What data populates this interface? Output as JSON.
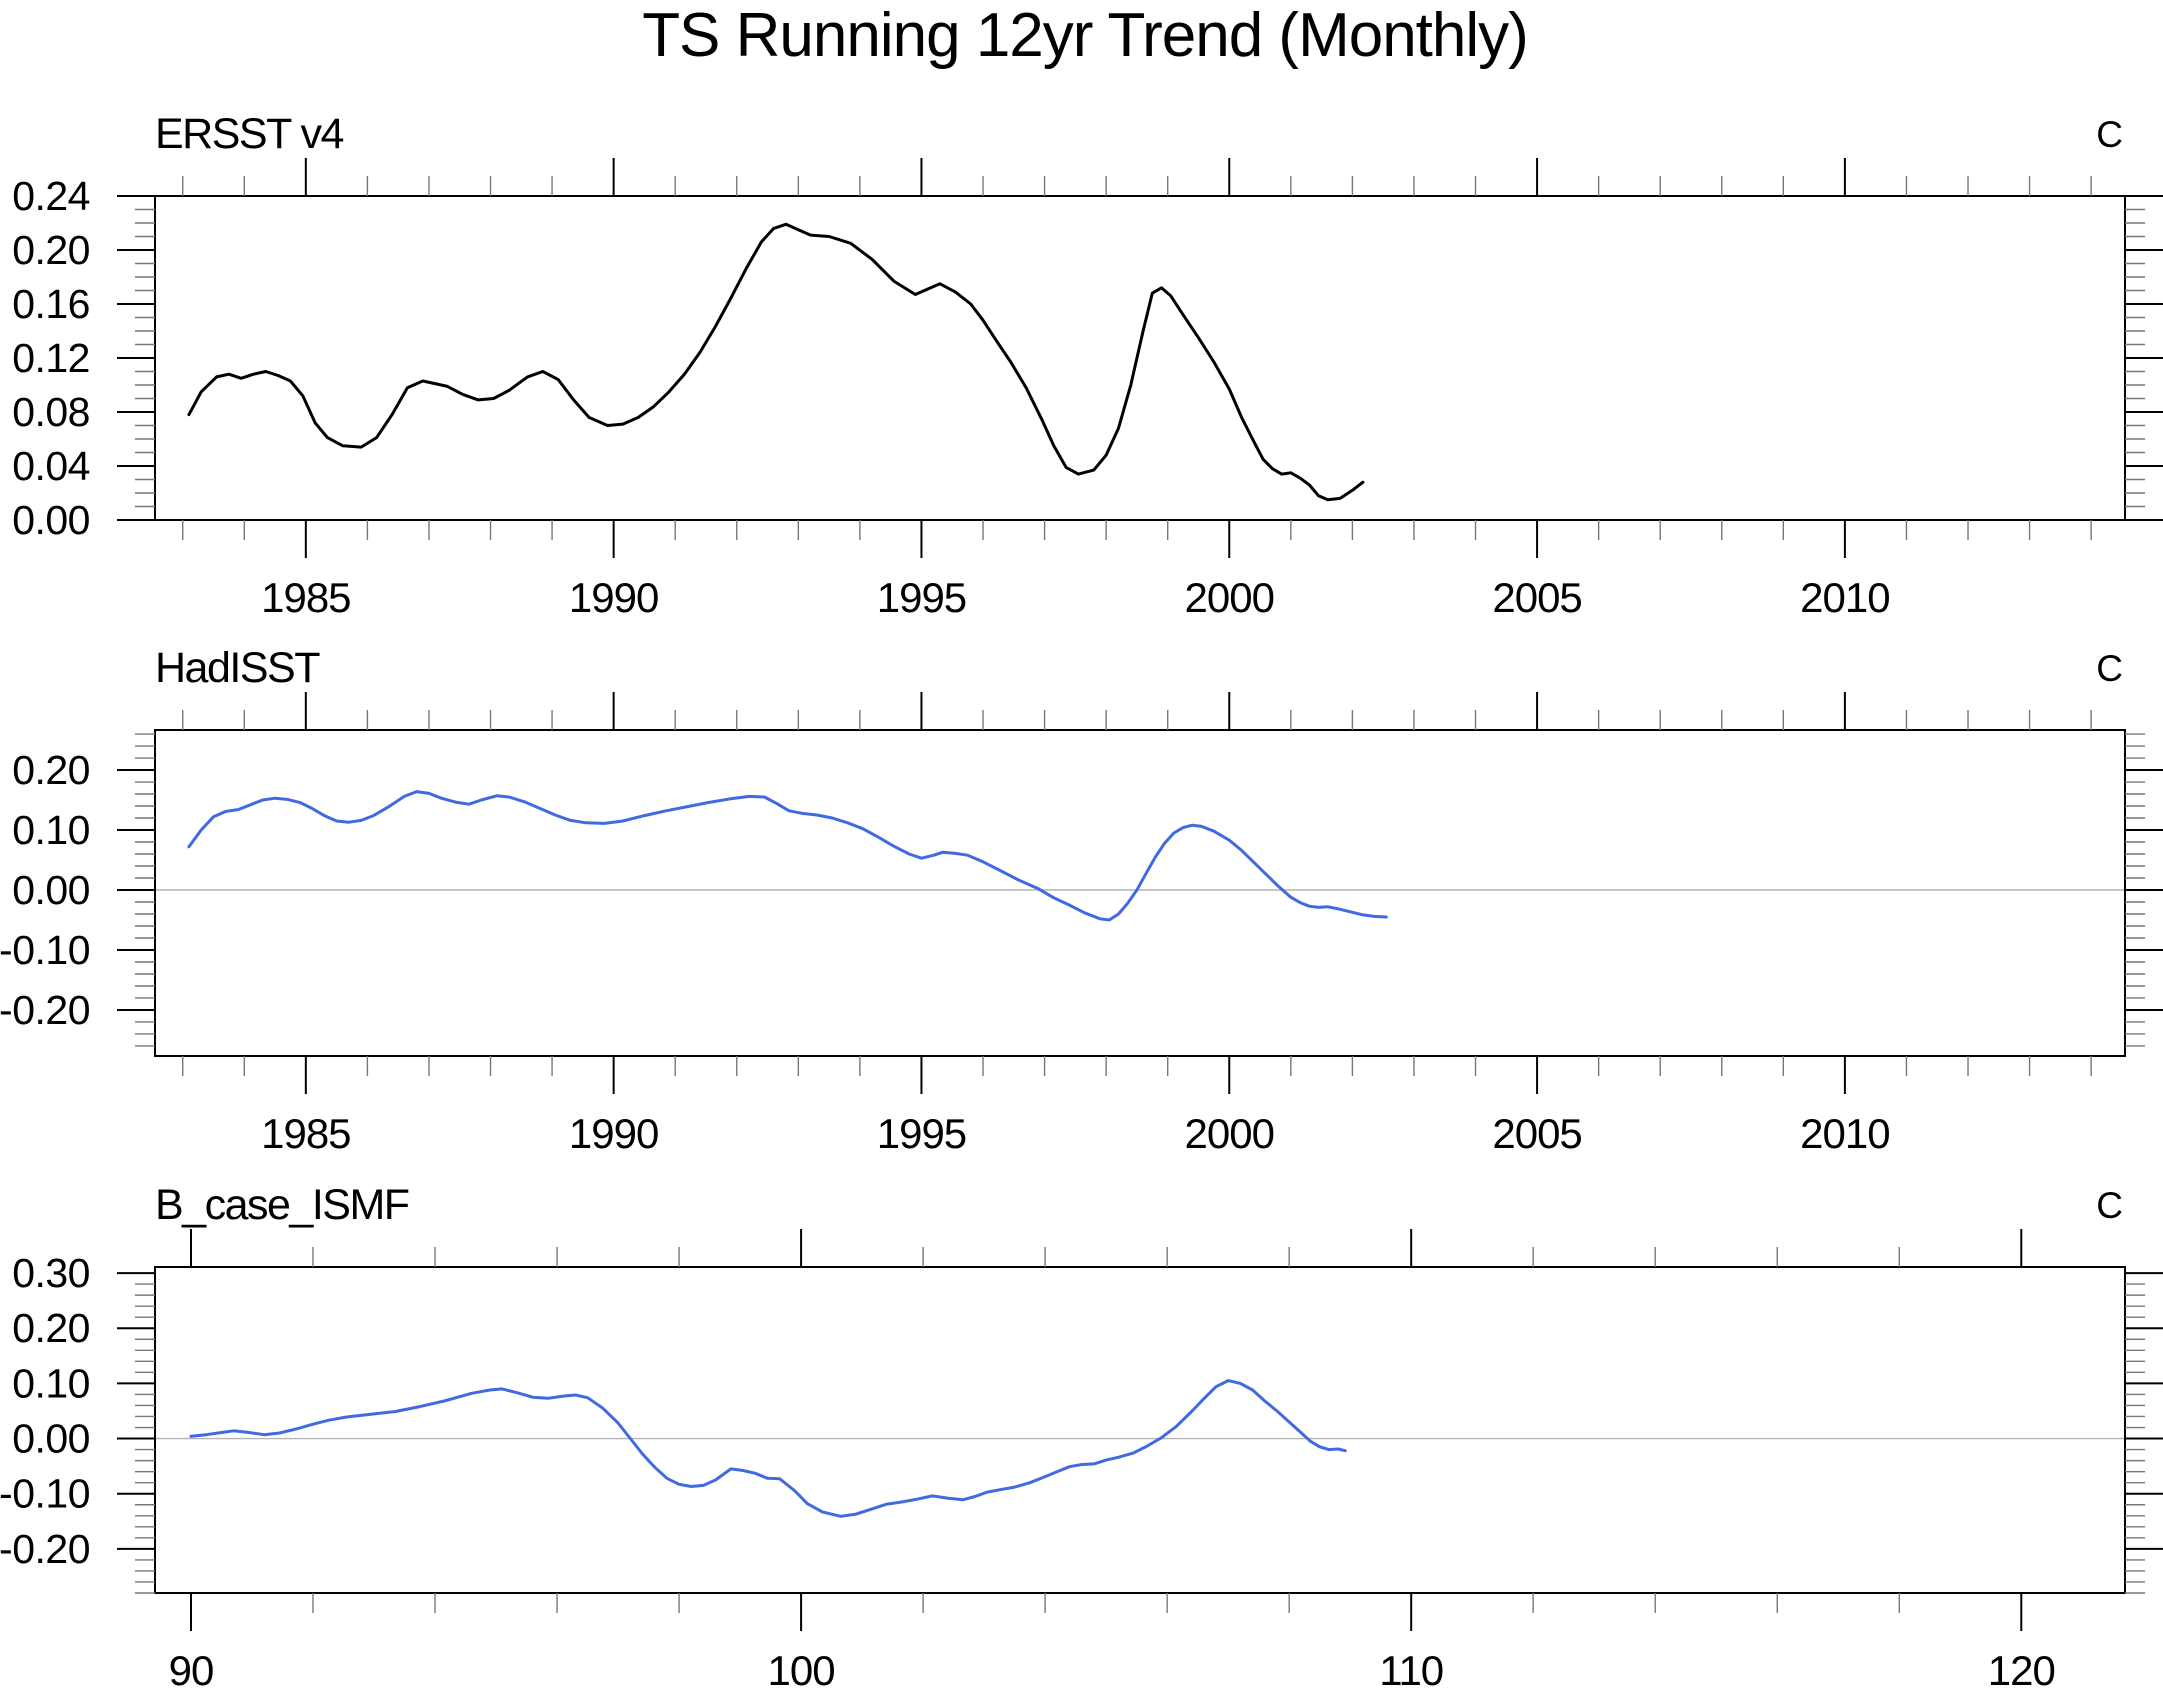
{
  "title": "TS Running 12yr Trend (Monthly)",
  "colors": {
    "background": "#ffffff",
    "axis": "#000000",
    "major_tick": "#000000",
    "minor_tick": "#777777",
    "zero_line": "#b3b3b3",
    "black_series": "#000000",
    "blue_series": "#4169e1"
  },
  "chart_data": [
    {
      "type": "line",
      "title": "ERSST v4",
      "unit_label": "C",
      "line_color": "#000000",
      "grid": false,
      "zero_line": false,
      "xlim": [
        1982.55,
        2014.55
      ],
      "ylim": [
        0.0,
        0.24
      ],
      "x_major_ticks": [
        1985,
        1990,
        1995,
        2000,
        2005,
        2010
      ],
      "x_tick_labels": [
        "1985",
        "1990",
        "1995",
        "2000",
        "2005",
        "2010"
      ],
      "x_minor_step": 1,
      "y_major_ticks": [
        0.0,
        0.04,
        0.08,
        0.12,
        0.16,
        0.2,
        0.24
      ],
      "y_tick_labels": [
        "0.00",
        "0.04",
        "0.08",
        "0.12",
        "0.16",
        "0.20",
        "0.24"
      ],
      "y_minor_step": 0.01,
      "x": [
        1983.1,
        1983.3,
        1983.55,
        1983.75,
        1983.95,
        1984.15,
        1984.35,
        1984.55,
        1984.75,
        1984.95,
        1985.15,
        1985.35,
        1985.6,
        1985.9,
        1986.15,
        1986.4,
        1986.65,
        1986.9,
        1987.1,
        1987.3,
        1987.55,
        1987.8,
        1988.05,
        1988.3,
        1988.6,
        1988.85,
        1989.1,
        1989.35,
        1989.6,
        1989.9,
        1990.15,
        1990.4,
        1990.65,
        1990.9,
        1991.15,
        1991.4,
        1991.65,
        1991.9,
        1992.15,
        1992.4,
        1992.6,
        1992.8,
        1993.0,
        1993.2,
        1993.5,
        1993.85,
        1994.2,
        1994.55,
        1994.9,
        1995.1,
        1995.3,
        1995.55,
        1995.8,
        1996.0,
        1996.2,
        1996.45,
        1996.7,
        1996.95,
        1997.15,
        1997.35,
        1997.55,
        1997.8,
        1998.0,
        1998.2,
        1998.4,
        1998.6,
        1998.75,
        1998.9,
        1999.05,
        1999.25,
        1999.5,
        1999.75,
        2000.0,
        2000.2,
        2000.4,
        2000.55,
        2000.7,
        2000.85,
        2001.0,
        2001.15,
        2001.3,
        2001.45,
        2001.6,
        2001.8,
        2002.0,
        2002.17
      ],
      "y": [
        0.078,
        0.095,
        0.106,
        0.108,
        0.105,
        0.108,
        0.11,
        0.107,
        0.103,
        0.092,
        0.072,
        0.061,
        0.055,
        0.054,
        0.061,
        0.078,
        0.098,
        0.103,
        0.101,
        0.099,
        0.093,
        0.089,
        0.09,
        0.096,
        0.106,
        0.11,
        0.104,
        0.089,
        0.076,
        0.07,
        0.071,
        0.076,
        0.084,
        0.095,
        0.108,
        0.124,
        0.143,
        0.164,
        0.186,
        0.206,
        0.216,
        0.219,
        0.215,
        0.211,
        0.21,
        0.205,
        0.193,
        0.177,
        0.167,
        0.171,
        0.175,
        0.169,
        0.16,
        0.148,
        0.134,
        0.117,
        0.098,
        0.075,
        0.055,
        0.039,
        0.034,
        0.037,
        0.048,
        0.068,
        0.1,
        0.14,
        0.168,
        0.172,
        0.166,
        0.152,
        0.135,
        0.117,
        0.097,
        0.076,
        0.058,
        0.045,
        0.038,
        0.034,
        0.035,
        0.031,
        0.026,
        0.018,
        0.015,
        0.016,
        0.022,
        0.028
      ]
    },
    {
      "type": "line",
      "title": "HadISST",
      "unit_label": "C",
      "line_color": "#4169e1",
      "grid": false,
      "zero_line": true,
      "xlim": [
        1982.55,
        2014.55
      ],
      "ylim": [
        -0.2767,
        0.2667
      ],
      "x_major_ticks": [
        1985,
        1990,
        1995,
        2000,
        2005,
        2010
      ],
      "x_tick_labels": [
        "1985",
        "1990",
        "1995",
        "2000",
        "2005",
        "2010"
      ],
      "x_minor_step": 1,
      "y_major_ticks": [
        -0.2,
        -0.1,
        0.0,
        0.1,
        0.2
      ],
      "y_tick_labels": [
        "-0.20",
        "-0.10",
        "0.00",
        "0.10",
        "0.20"
      ],
      "y_minor_step": 0.02,
      "x": [
        1983.1,
        1983.3,
        1983.5,
        1983.7,
        1983.9,
        1984.1,
        1984.3,
        1984.5,
        1984.7,
        1984.9,
        1985.1,
        1985.3,
        1985.5,
        1985.7,
        1985.9,
        1986.1,
        1986.35,
        1986.6,
        1986.8,
        1987.0,
        1987.2,
        1987.45,
        1987.65,
        1987.85,
        1988.1,
        1988.3,
        1988.55,
        1988.8,
        1989.05,
        1989.3,
        1989.55,
        1989.85,
        1990.15,
        1990.5,
        1990.85,
        1991.2,
        1991.55,
        1991.9,
        1992.2,
        1992.45,
        1992.65,
        1992.85,
        1993.05,
        1993.3,
        1993.55,
        1993.8,
        1994.05,
        1994.3,
        1994.55,
        1994.8,
        1995.0,
        1995.2,
        1995.35,
        1995.55,
        1995.75,
        1996.0,
        1996.25,
        1996.55,
        1996.9,
        1997.15,
        1997.4,
        1997.65,
        1997.9,
        1998.05,
        1998.2,
        1998.35,
        1998.5,
        1998.65,
        1998.8,
        1998.95,
        1999.1,
        1999.25,
        1999.4,
        1999.55,
        1999.75,
        2000.0,
        2000.2,
        2000.4,
        2000.6,
        2000.8,
        2001.0,
        2001.15,
        2001.3,
        2001.45,
        2001.6,
        2001.75,
        2001.95,
        2002.15,
        2002.35,
        2002.55
      ],
      "y": [
        0.072,
        0.1,
        0.122,
        0.131,
        0.134,
        0.142,
        0.15,
        0.153,
        0.151,
        0.146,
        0.136,
        0.124,
        0.115,
        0.113,
        0.116,
        0.124,
        0.139,
        0.156,
        0.164,
        0.161,
        0.153,
        0.146,
        0.143,
        0.15,
        0.157,
        0.155,
        0.147,
        0.136,
        0.125,
        0.116,
        0.112,
        0.111,
        0.115,
        0.124,
        0.132,
        0.139,
        0.146,
        0.152,
        0.156,
        0.155,
        0.144,
        0.132,
        0.128,
        0.125,
        0.12,
        0.112,
        0.102,
        0.088,
        0.073,
        0.06,
        0.053,
        0.058,
        0.063,
        0.061,
        0.058,
        0.047,
        0.034,
        0.018,
        0.002,
        -0.013,
        -0.025,
        -0.038,
        -0.048,
        -0.05,
        -0.04,
        -0.022,
        0.0,
        0.028,
        0.055,
        0.078,
        0.095,
        0.104,
        0.108,
        0.106,
        0.098,
        0.083,
        0.066,
        0.046,
        0.026,
        0.006,
        -0.012,
        -0.021,
        -0.027,
        -0.029,
        -0.028,
        -0.031,
        -0.036,
        -0.041,
        -0.044,
        -0.045
      ]
    },
    {
      "type": "line",
      "title": "B_case_ISMF",
      "unit_label": "C",
      "line_color": "#4169e1",
      "grid": false,
      "zero_line": true,
      "xlim": [
        89.41,
        121.7
      ],
      "ylim": [
        -0.28,
        0.311
      ],
      "x_major_ticks": [
        90,
        100,
        110,
        120
      ],
      "x_tick_labels": [
        "90",
        "100",
        "110",
        "120"
      ],
      "x_minor_step": 2,
      "y_major_ticks": [
        -0.2,
        -0.1,
        0.0,
        0.1,
        0.2,
        0.3
      ],
      "y_tick_labels": [
        "-0.20",
        "-0.10",
        "0.00",
        "0.10",
        "0.20",
        "0.30"
      ],
      "y_minor_step": 0.02,
      "x": [
        90.0,
        90.25,
        90.5,
        90.7,
        90.95,
        91.2,
        91.45,
        91.75,
        92.0,
        92.25,
        92.55,
        92.95,
        93.35,
        93.75,
        94.15,
        94.6,
        94.9,
        95.1,
        95.35,
        95.6,
        95.85,
        96.1,
        96.3,
        96.5,
        96.75,
        97.0,
        97.2,
        97.4,
        97.6,
        97.8,
        98.0,
        98.2,
        98.4,
        98.6,
        98.85,
        99.05,
        99.25,
        99.45,
        99.65,
        99.9,
        100.1,
        100.35,
        100.65,
        100.9,
        101.15,
        101.4,
        101.65,
        101.9,
        102.15,
        102.4,
        102.65,
        102.85,
        103.05,
        103.25,
        103.5,
        103.75,
        104.0,
        104.2,
        104.4,
        104.6,
        104.8,
        105.0,
        105.2,
        105.45,
        105.65,
        105.9,
        106.15,
        106.4,
        106.6,
        106.8,
        107.0,
        107.2,
        107.4,
        107.6,
        107.8,
        108.0,
        108.2,
        108.35,
        108.5,
        108.65,
        108.8,
        108.92
      ],
      "y": [
        0.004,
        0.007,
        0.011,
        0.014,
        0.011,
        0.007,
        0.01,
        0.018,
        0.026,
        0.033,
        0.039,
        0.044,
        0.049,
        0.058,
        0.068,
        0.082,
        0.088,
        0.09,
        0.083,
        0.075,
        0.073,
        0.077,
        0.079,
        0.074,
        0.055,
        0.028,
        0.0,
        -0.028,
        -0.052,
        -0.072,
        -0.083,
        -0.087,
        -0.085,
        -0.075,
        -0.055,
        -0.058,
        -0.063,
        -0.072,
        -0.073,
        -0.095,
        -0.118,
        -0.133,
        -0.141,
        -0.137,
        -0.128,
        -0.119,
        -0.115,
        -0.11,
        -0.104,
        -0.108,
        -0.111,
        -0.105,
        -0.097,
        -0.093,
        -0.088,
        -0.08,
        -0.069,
        -0.06,
        -0.051,
        -0.047,
        -0.046,
        -0.039,
        -0.034,
        -0.026,
        -0.015,
        0.001,
        0.022,
        0.049,
        0.072,
        0.094,
        0.105,
        0.1,
        0.088,
        0.068,
        0.05,
        0.03,
        0.01,
        -0.005,
        -0.015,
        -0.02,
        -0.019,
        -0.022
      ]
    }
  ]
}
